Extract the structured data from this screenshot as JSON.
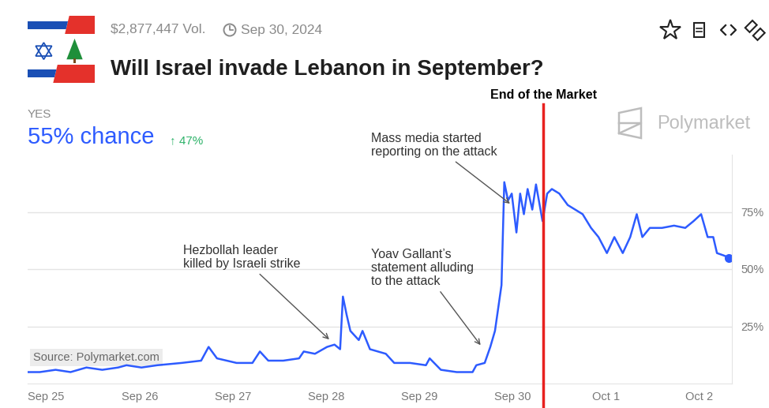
{
  "chart_data": {
    "type": "line",
    "title": "Will Israel invade Lebanon in September?",
    "volume": "$2,877,447 Vol.",
    "date": "Sep 30, 2024",
    "outcome": "YES",
    "headline": "55% chance",
    "change": "↑ 47%",
    "watermark": "Polymarket",
    "source": "Source: Polymarket.com",
    "x": [
      -0.2,
      -0.07,
      0.1,
      0.26,
      0.43,
      0.6,
      0.77,
      0.86,
      1.02,
      1.19,
      1.45,
      1.66,
      1.74,
      1.83,
      2.04,
      2.21,
      2.29,
      2.38,
      2.54,
      2.71,
      2.76,
      2.88,
      3.01,
      3.09,
      3.15,
      3.18,
      3.22,
      3.26,
      3.35,
      3.39,
      3.47,
      3.64,
      3.73,
      3.9,
      4.07,
      4.11,
      4.23,
      4.4,
      4.57,
      4.61,
      4.7,
      4.76,
      4.81,
      4.88,
      4.91,
      4.95,
      4.99,
      5.04,
      5.08,
      5.12,
      5.16,
      5.21,
      5.25,
      5.32,
      5.37,
      5.42,
      5.5,
      5.59,
      5.75,
      5.84,
      5.92,
      6.01,
      6.09,
      6.18,
      6.26,
      6.33,
      6.39,
      6.47,
      6.6,
      6.73,
      6.85,
      6.94,
      7.02,
      7.09,
      7.15,
      7.19,
      7.26,
      7.32
    ],
    "values": [
      5,
      5,
      6,
      5,
      7,
      6,
      7,
      8,
      7,
      8,
      9,
      10,
      16,
      11,
      9,
      9,
      14,
      10,
      10,
      11,
      14,
      13,
      16,
      17,
      15,
      38,
      30,
      23,
      19,
      23,
      15,
      13,
      9,
      9,
      8,
      11,
      6,
      5,
      5,
      8,
      9,
      16,
      23,
      43,
      88,
      80,
      83,
      66,
      83,
      74,
      85,
      76,
      87,
      71,
      83,
      85,
      83,
      78,
      74,
      68,
      64,
      57,
      64,
      57,
      64,
      74,
      64,
      68,
      68,
      69,
      68,
      71,
      74,
      64,
      64,
      57,
      56,
      55
    ],
    "color": "#2d5bff",
    "xlim": [
      -0.2,
      7.35
    ],
    "xticks": [
      {
        "value": 0,
        "label": "Sep 25"
      },
      {
        "value": 1,
        "label": "Sep 26"
      },
      {
        "value": 2,
        "label": "Sep 27"
      },
      {
        "value": 3,
        "label": "Sep 28"
      },
      {
        "value": 4,
        "label": "Sep 29"
      },
      {
        "value": 5,
        "label": "Sep 30"
      },
      {
        "value": 6,
        "label": "Oct 1"
      },
      {
        "value": 7,
        "label": "Oct 2"
      }
    ],
    "ylim": [
      0,
      100
    ],
    "yticks": [
      {
        "value": 25,
        "label": "25%"
      },
      {
        "value": 50,
        "label": "50%"
      },
      {
        "value": 75,
        "label": "75%"
      }
    ],
    "grid": true,
    "end_marker": {
      "label": "End of the Market",
      "x": 5.33
    },
    "annotations": [
      {
        "text": "Hezbollah leader\nkilled by Israeli strike",
        "x": 3.05,
        "y": 18.6
      },
      {
        "text": "Yoav Gallant’s\nstatement alluding\nto the attack",
        "x": 4.67,
        "y": 16
      },
      {
        "text": "Mass media started\nreporting on the attack",
        "x": 4.99,
        "y": 78
      }
    ]
  }
}
